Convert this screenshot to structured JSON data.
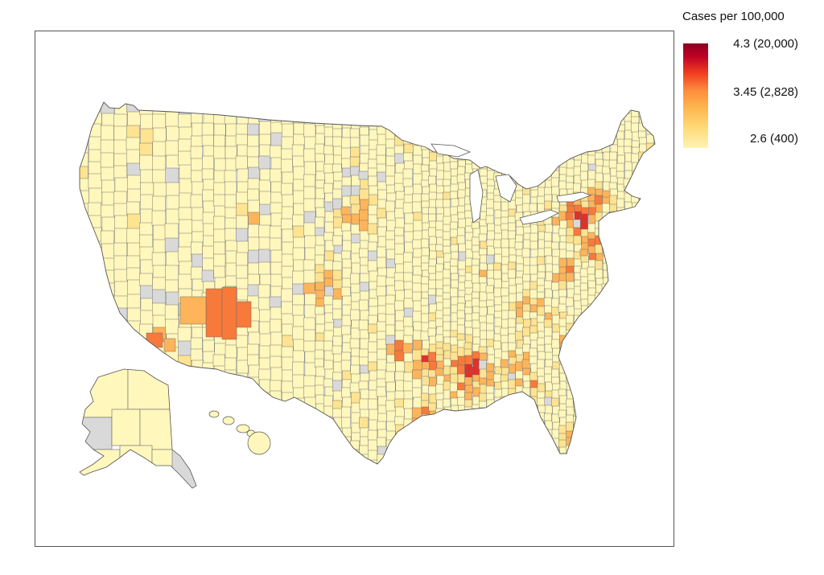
{
  "map": {
    "region": "United States counties",
    "missing_color": "#d9d9d9",
    "border_color": "#555555",
    "colors": {
      "low": "#fff7bc",
      "low_mid": "#fee391",
      "mid": "#fdb45a",
      "mid_high": "#f77a3a",
      "high": "#e0302a",
      "top": "#9e0021"
    }
  },
  "legend": {
    "title": "Cases per 100,000",
    "ticks": [
      {
        "label": "4.3 (20,000)",
        "log_value": 4.3,
        "cases": 20000
      },
      {
        "label": "3.45 (2,828)",
        "log_value": 3.45,
        "cases": 2828
      },
      {
        "label": "2.6 (400)",
        "log_value": 2.6,
        "cases": 400
      }
    ],
    "gradient": [
      "#fff3b5",
      "#fed976",
      "#feb24c",
      "#fd8d3c",
      "#f03b20",
      "#bd0026",
      "#8b0020"
    ]
  }
}
